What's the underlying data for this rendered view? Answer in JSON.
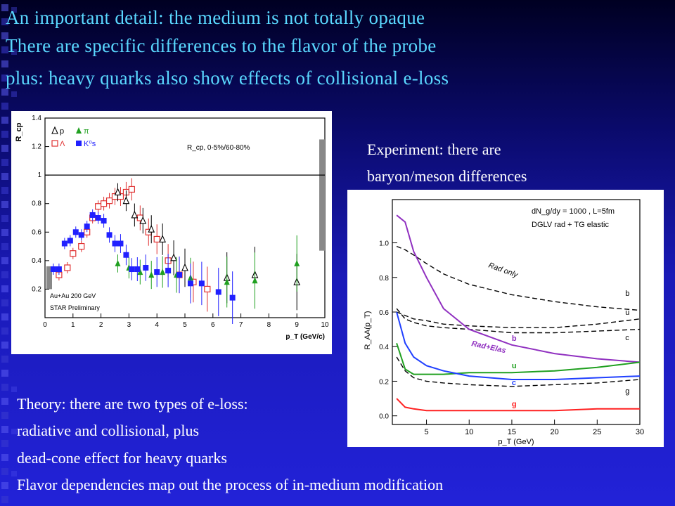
{
  "headline": {
    "line1": "An important detail: the medium is not totally opaque",
    "line2": "There are specific differences to the flavor of the probe",
    "line3": "plus: heavy quarks also show effects of collisional e-loss"
  },
  "experiment_caption": {
    "line1": "Experiment: there are",
    "line2": "baryon/meson differences"
  },
  "theory_caption": {
    "line1": "Theory: there are two types of e-loss:",
    "line2": "radiative and collisional, plus",
    "line3": "dead-cone effect for heavy quarks",
    "line4": "Flavor dependencies map out the process of in-medium modification"
  },
  "colors": {
    "headline": "#5ad8ff",
    "body_text": "#ffffff"
  },
  "chart_data": [
    {
      "type": "scatter",
      "title": "",
      "xlabel": "p_T (GeV/c)",
      "ylabel": "R_cp",
      "xlim": [
        0,
        10
      ],
      "ylim": [
        0,
        1.4
      ],
      "xticks": [
        "0",
        "1",
        "2",
        "3",
        "4",
        "5",
        "6",
        "7",
        "8",
        "9",
        "10"
      ],
      "yticks": [
        "0.2",
        "0.4",
        "0.6",
        "0.8",
        "1",
        "1.2",
        "1.4"
      ],
      "annotations": [
        "R_cp, 0-5%/60-80%",
        "Au+Au 200 GeV",
        "STAR Preliminary"
      ],
      "legend": [
        "p",
        "π",
        "Λ",
        "K⁰s"
      ],
      "reference_line": 1,
      "series": [
        {
          "name": "Λ",
          "marker": "open-square",
          "color": "#e03030",
          "x": [
            0.5,
            0.8,
            1.0,
            1.3,
            1.5,
            1.7,
            1.9,
            2.1,
            2.3,
            2.5,
            2.7,
            2.9,
            3.1,
            3.4,
            3.7,
            4.0,
            4.4,
            4.8,
            5.3,
            5.8
          ],
          "y": [
            0.3,
            0.35,
            0.45,
            0.5,
            0.6,
            0.7,
            0.78,
            0.8,
            0.82,
            0.85,
            0.85,
            0.88,
            0.9,
            0.7,
            0.6,
            0.55,
            0.4,
            0.3,
            0.25,
            0.2
          ]
        },
        {
          "name": "p",
          "marker": "open-triangle",
          "color": "#000000",
          "x": [
            2.6,
            2.9,
            3.2,
            3.5,
            3.8,
            4.2,
            4.6,
            5.0,
            6.5,
            7.5,
            9.0
          ],
          "y": [
            0.88,
            0.82,
            0.72,
            0.68,
            0.62,
            0.55,
            0.42,
            0.35,
            0.28,
            0.3,
            0.25
          ]
        },
        {
          "name": "π",
          "marker": "filled-triangle",
          "color": "#20a020",
          "x": [
            2.6,
            3.0,
            3.4,
            3.8,
            4.2,
            4.7,
            5.2,
            6.5,
            7.5,
            9.0
          ],
          "y": [
            0.38,
            0.35,
            0.32,
            0.3,
            0.32,
            0.3,
            0.28,
            0.25,
            0.26,
            0.38
          ]
        },
        {
          "name": "K⁰s",
          "marker": "filled-square",
          "color": "#2020ff",
          "x": [
            0.3,
            0.5,
            0.7,
            0.9,
            1.1,
            1.3,
            1.5,
            1.7,
            1.9,
            2.1,
            2.3,
            2.5,
            2.7,
            2.9,
            3.1,
            3.3,
            3.6,
            4.0,
            4.4,
            4.8,
            5.2,
            5.6,
            6.2,
            6.7
          ],
          "y": [
            0.34,
            0.34,
            0.52,
            0.54,
            0.6,
            0.58,
            0.64,
            0.72,
            0.7,
            0.68,
            0.58,
            0.52,
            0.52,
            0.44,
            0.34,
            0.34,
            0.35,
            0.32,
            0.33,
            0.3,
            0.24,
            0.24,
            0.18,
            0.14
          ]
        }
      ]
    },
    {
      "type": "line",
      "title": "",
      "xlabel": "p_T (GeV)",
      "ylabel": "R_AA(p_T)",
      "xlim": [
        1,
        30
      ],
      "ylim": [
        -0.05,
        1.25
      ],
      "xticks": [
        "5",
        "10",
        "15",
        "20",
        "25",
        "30"
      ],
      "yticks": [
        "0.0",
        "0.2",
        "0.4",
        "0.6",
        "0.8",
        "1.0"
      ],
      "annotations": [
        "dN_g/dy = 1000 , L=5fm",
        "DGLV rad + TG elastic",
        "Rad only",
        "Rad+Elas"
      ],
      "x": [
        1.5,
        2.5,
        3.5,
        5,
        7,
        10,
        15,
        20,
        25,
        30
      ],
      "series": [
        {
          "name": "b",
          "style": "dashed",
          "color": "#000000",
          "values": [
            0.98,
            0.96,
            0.93,
            0.88,
            0.82,
            0.76,
            0.7,
            0.66,
            0.63,
            0.61
          ]
        },
        {
          "name": "u",
          "style": "dashed",
          "color": "#000000",
          "values": [
            0.6,
            0.58,
            0.56,
            0.55,
            0.53,
            0.52,
            0.51,
            0.51,
            0.53,
            0.56
          ]
        },
        {
          "name": "c",
          "style": "dashed",
          "color": "#000000",
          "values": [
            0.62,
            0.56,
            0.54,
            0.52,
            0.51,
            0.5,
            0.48,
            0.48,
            0.49,
            0.5
          ]
        },
        {
          "name": "g",
          "style": "dashed",
          "color": "#000000",
          "values": [
            0.34,
            0.26,
            0.22,
            0.2,
            0.19,
            0.18,
            0.17,
            0.18,
            0.19,
            0.21
          ]
        },
        {
          "name": "b",
          "style": "solid",
          "color": "#9030c0",
          "values": [
            1.16,
            1.12,
            0.95,
            0.8,
            0.62,
            0.5,
            0.41,
            0.36,
            0.33,
            0.31
          ]
        },
        {
          "name": "u",
          "style": "solid",
          "color": "#20a020",
          "values": [
            0.42,
            0.27,
            0.24,
            0.24,
            0.24,
            0.25,
            0.25,
            0.26,
            0.28,
            0.31
          ]
        },
        {
          "name": "c",
          "style": "solid",
          "color": "#2040ff",
          "values": [
            0.6,
            0.42,
            0.34,
            0.29,
            0.26,
            0.23,
            0.21,
            0.21,
            0.22,
            0.23
          ]
        },
        {
          "name": "g",
          "style": "solid",
          "color": "#ff2020",
          "values": [
            0.1,
            0.05,
            0.04,
            0.03,
            0.03,
            0.03,
            0.03,
            0.03,
            0.04,
            0.04
          ]
        }
      ]
    }
  ]
}
